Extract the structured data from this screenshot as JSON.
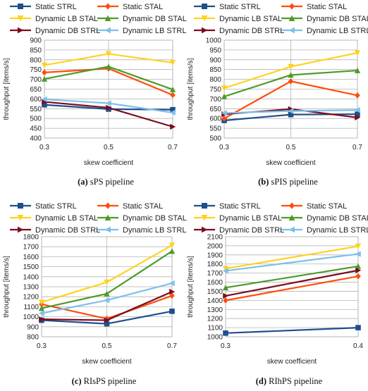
{
  "colors": {
    "Static STRL": "#1f4e8c",
    "Static STAL": "#ff4d0d",
    "Dynamic LB STAL": "#ffd21f",
    "Dynamic DB STAL": "#4f9a2a",
    "Dynamic DB STRL": "#7b0c1f",
    "Dynamic LB STRL": "#7ec0ea"
  },
  "chart_data": [
    {
      "type": "line",
      "caption_label": "(a)",
      "caption_text": "sPS pipeline",
      "xlabel": "skew coefficient",
      "ylabel": "throughput [items/s]",
      "x": [
        0.3,
        0.5,
        0.7
      ],
      "x_ticks": [
        "0.3",
        "0.5",
        "0.7"
      ],
      "ylim": [
        400,
        900
      ],
      "y_ticks": [
        400,
        450,
        500,
        550,
        600,
        650,
        700,
        750,
        800,
        850,
        900
      ],
      "grid": true,
      "legend_position": "top",
      "series": [
        {
          "name": "Static STRL",
          "marker": "square",
          "values": [
            570,
            548,
            545
          ]
        },
        {
          "name": "Static STAL",
          "marker": "diamond",
          "values": [
            735,
            755,
            620
          ]
        },
        {
          "name": "Dynamic LB STAL",
          "marker": "triangle-down",
          "values": [
            772,
            830,
            785
          ]
        },
        {
          "name": "Dynamic DB STAL",
          "marker": "triangle-up",
          "values": [
            702,
            765,
            648
          ]
        },
        {
          "name": "Dynamic DB STRL",
          "marker": "triangle-right",
          "values": [
            585,
            555,
            458
          ]
        },
        {
          "name": "Dynamic LB STRL",
          "marker": "triangle-left",
          "values": [
            598,
            578,
            530
          ]
        }
      ]
    },
    {
      "type": "line",
      "caption_label": "(b)",
      "caption_text": "sPIS pipeline",
      "xlabel": "skew coefficient",
      "ylabel": "throughput [items/s]",
      "x": [
        0.3,
        0.5,
        0.7
      ],
      "x_ticks": [
        "0.3",
        "0.5",
        "0.7"
      ],
      "ylim": [
        500,
        1000
      ],
      "y_ticks": [
        500,
        550,
        600,
        650,
        700,
        750,
        800,
        850,
        900,
        950,
        1000
      ],
      "grid": true,
      "legend_position": "top",
      "series": [
        {
          "name": "Static STRL",
          "marker": "square",
          "values": [
            590,
            620,
            622
          ]
        },
        {
          "name": "Static STAL",
          "marker": "diamond",
          "values": [
            600,
            790,
            718
          ]
        },
        {
          "name": "Dynamic LB STAL",
          "marker": "triangle-down",
          "values": [
            755,
            865,
            935
          ]
        },
        {
          "name": "Dynamic DB STAL",
          "marker": "triangle-up",
          "values": [
            712,
            822,
            845
          ]
        },
        {
          "name": "Dynamic DB STRL",
          "marker": "triangle-right",
          "values": [
            622,
            648,
            605
          ]
        },
        {
          "name": "Dynamic LB STRL",
          "marker": "triangle-left",
          "values": [
            628,
            638,
            643
          ]
        }
      ]
    },
    {
      "type": "line",
      "caption_label": "(c)",
      "caption_text": "RIsPS pipeline",
      "xlabel": "skew coefficient",
      "ylabel": "throughput [items/s]",
      "x": [
        0.3,
        0.5,
        0.7
      ],
      "x_ticks": [
        "0.3",
        "0.5",
        "0.7"
      ],
      "ylim": [
        800,
        1800
      ],
      "y_ticks": [
        800,
        900,
        1000,
        1100,
        1200,
        1300,
        1400,
        1500,
        1600,
        1700,
        1800
      ],
      "grid": true,
      "legend_position": "top",
      "series": [
        {
          "name": "Static STRL",
          "marker": "square",
          "values": [
            965,
            930,
            1055
          ]
        },
        {
          "name": "Static STAL",
          "marker": "diamond",
          "values": [
            1125,
            980,
            1210
          ]
        },
        {
          "name": "Dynamic LB STAL",
          "marker": "triangle-down",
          "values": [
            1145,
            1345,
            1715
          ]
        },
        {
          "name": "Dynamic DB STAL",
          "marker": "triangle-up",
          "values": [
            1085,
            1230,
            1655
          ]
        },
        {
          "name": "Dynamic DB STRL",
          "marker": "triangle-right",
          "values": [
            975,
            965,
            1250
          ]
        },
        {
          "name": "Dynamic LB STRL",
          "marker": "triangle-left",
          "values": [
            1035,
            1165,
            1335
          ]
        }
      ]
    },
    {
      "type": "line",
      "caption_label": "(d)",
      "caption_text": "RIhPS pipeline",
      "xlabel": "skew coefficient",
      "ylabel": "throughput [items/s]",
      "x": [
        0.3,
        0.4
      ],
      "x_ticks": [
        "0.3",
        "0.4"
      ],
      "ylim": [
        1000,
        2100
      ],
      "y_ticks": [
        1000,
        1100,
        1200,
        1300,
        1400,
        1500,
        1600,
        1700,
        1800,
        1900,
        2000,
        2100
      ],
      "grid": true,
      "legend_position": "top",
      "series": [
        {
          "name": "Static STRL",
          "marker": "square",
          "values": [
            1040,
            1100
          ]
        },
        {
          "name": "Static STAL",
          "marker": "diamond",
          "values": [
            1400,
            1665
          ]
        },
        {
          "name": "Dynamic LB STAL",
          "marker": "triangle-down",
          "values": [
            1750,
            1995
          ]
        },
        {
          "name": "Dynamic DB STAL",
          "marker": "triangle-up",
          "values": [
            1540,
            1775
          ]
        },
        {
          "name": "Dynamic DB STRL",
          "marker": "triangle-right",
          "values": [
            1450,
            1730
          ]
        },
        {
          "name": "Dynamic LB STRL",
          "marker": "triangle-left",
          "values": [
            1725,
            1910
          ]
        }
      ]
    }
  ]
}
